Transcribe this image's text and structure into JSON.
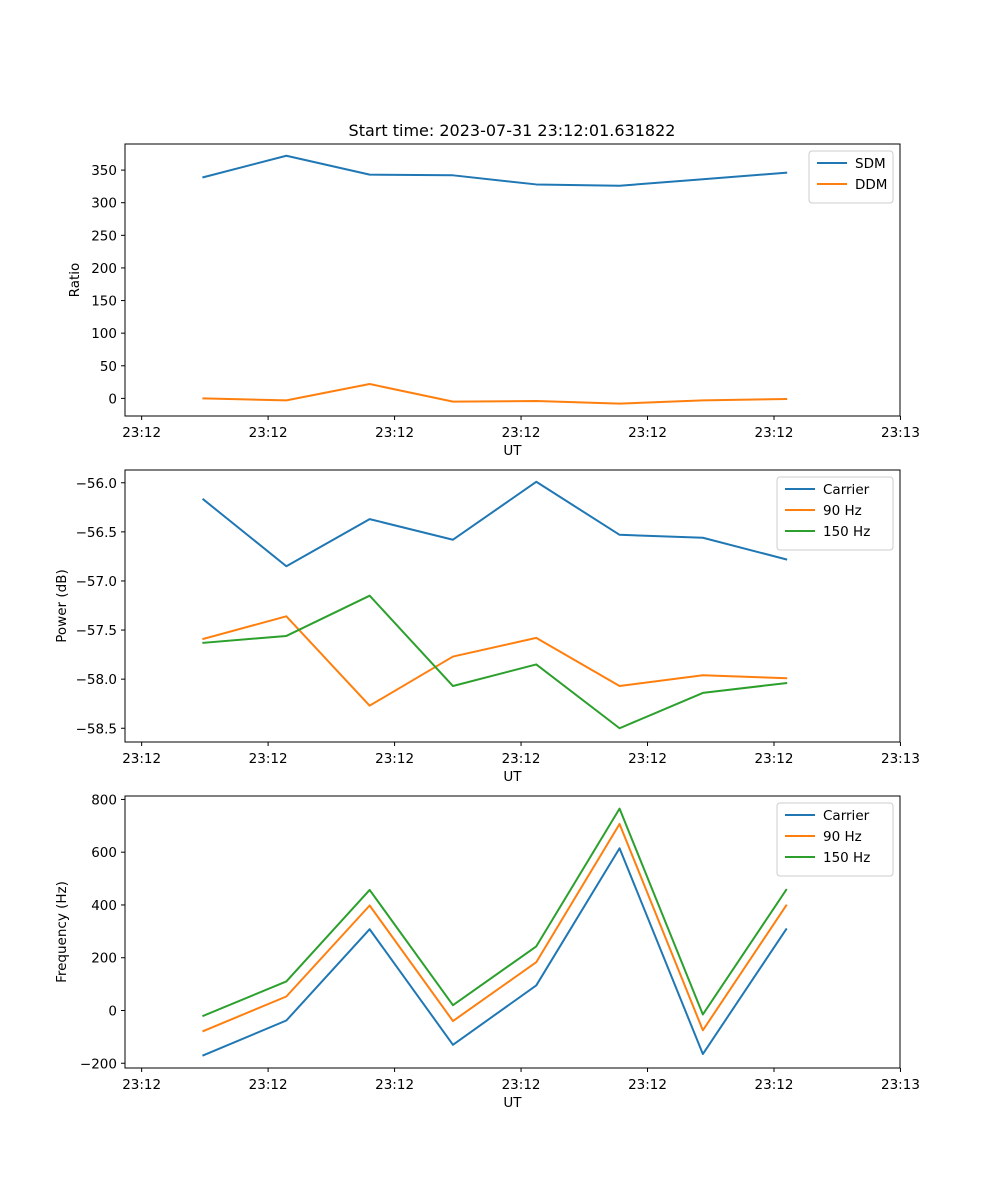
{
  "figure_title": "Start time: 2023-07-31 23:12:01.631822",
  "chart_data": [
    {
      "type": "line",
      "title": "Start time: 2023-07-31 23:12:01.631822",
      "xlabel": "UT",
      "ylabel": "Ratio",
      "x_ticks": [
        0,
        1,
        2,
        3,
        4,
        5,
        6
      ],
      "x_tick_labels": [
        "23:12",
        "23:12",
        "23:12",
        "23:12",
        "23:12",
        "23:12",
        "23:13"
      ],
      "xlim": [
        -0.1316,
        5.9964
      ],
      "x": [
        0.4881,
        1.1442,
        1.8029,
        2.4616,
        3.1203,
        3.7789,
        4.4376,
        5.0963
      ],
      "ylim": [
        -27,
        390
      ],
      "y_ticks": [
        0,
        50,
        100,
        150,
        200,
        250,
        300,
        350
      ],
      "y_tick_labels": [
        "0",
        "50",
        "100",
        "150",
        "200",
        "250",
        "300",
        "350"
      ],
      "series": [
        {
          "name": "SDM",
          "color": "#1f77b4",
          "values": [
            339,
            372,
            343,
            342,
            328,
            326,
            336,
            346
          ]
        },
        {
          "name": "DDM",
          "color": "#ff7f0e",
          "values": [
            0,
            -3,
            22,
            -5,
            -4,
            -8,
            -3,
            -1
          ]
        }
      ],
      "legend": "top-right"
    },
    {
      "type": "line",
      "title": "",
      "xlabel": "UT",
      "ylabel": "Power (dB)",
      "x_ticks": [
        0,
        1,
        2,
        3,
        4,
        5,
        6
      ],
      "x_tick_labels": [
        "23:12",
        "23:12",
        "23:12",
        "23:12",
        "23:12",
        "23:12",
        "23:13"
      ],
      "xlim": [
        -0.1316,
        5.9964
      ],
      "x": [
        0.4881,
        1.1442,
        1.8029,
        2.4616,
        3.1203,
        3.7789,
        4.4376,
        5.0963
      ],
      "ylim": [
        -58.64,
        -55.87
      ],
      "y_ticks": [
        -58.5,
        -58.0,
        -57.5,
        -57.0,
        -56.5,
        -56.0
      ],
      "y_tick_labels": [
        "−58.5",
        "−58.0",
        "−57.5",
        "−57.0",
        "−56.5",
        "−56.0"
      ],
      "series": [
        {
          "name": "Carrier",
          "color": "#1f77b4",
          "values": [
            -56.17,
            -56.85,
            -56.37,
            -56.58,
            -55.99,
            -56.53,
            -56.56,
            -56.78
          ]
        },
        {
          "name": "90 Hz",
          "color": "#ff7f0e",
          "values": [
            -57.59,
            -57.36,
            -58.27,
            -57.77,
            -57.58,
            -58.07,
            -57.96,
            -57.99
          ]
        },
        {
          "name": "150 Hz",
          "color": "#2ca02c",
          "values": [
            -57.63,
            -57.56,
            -57.15,
            -58.07,
            -57.85,
            -58.5,
            -58.14,
            -58.04
          ]
        }
      ],
      "legend": "top-right"
    },
    {
      "type": "line",
      "title": "",
      "xlabel": "UT",
      "ylabel": "Frequency (Hz)",
      "x_ticks": [
        0,
        1,
        2,
        3,
        4,
        5,
        6
      ],
      "x_tick_labels": [
        "23:12",
        "23:12",
        "23:12",
        "23:12",
        "23:12",
        "23:12",
        "23:13"
      ],
      "xlim": [
        -0.1316,
        5.9964
      ],
      "x": [
        0.4881,
        1.1442,
        1.8029,
        2.4616,
        3.1203,
        3.7789,
        4.4376,
        5.0963
      ],
      "ylim": [
        -218,
        813
      ],
      "y_ticks": [
        -200,
        0,
        200,
        400,
        600,
        800
      ],
      "y_tick_labels": [
        "−200",
        "0",
        "200",
        "400",
        "600",
        "800"
      ],
      "series": [
        {
          "name": "Carrier",
          "color": "#1f77b4",
          "values": [
            -170,
            -38,
            308,
            -130,
            95,
            615,
            -165,
            308
          ]
        },
        {
          "name": "90 Hz",
          "color": "#ff7f0e",
          "values": [
            -78,
            53,
            398,
            -40,
            183,
            707,
            -75,
            398
          ]
        },
        {
          "name": "150 Hz",
          "color": "#2ca02c",
          "values": [
            -20,
            110,
            457,
            20,
            243,
            765,
            -15,
            457
          ]
        }
      ],
      "legend": "top-right"
    }
  ]
}
